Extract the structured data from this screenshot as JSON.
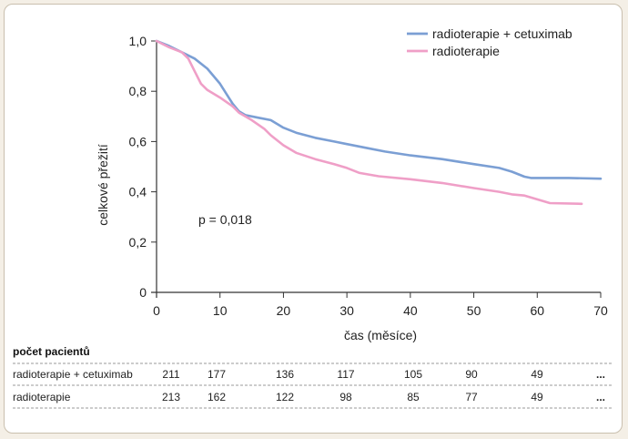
{
  "chart_data": {
    "type": "line",
    "xlabel": "čas (měsíce)",
    "ylabel": "celkové přežití",
    "xlim": [
      0,
      70
    ],
    "ylim": [
      0,
      1.0
    ],
    "xticks": [
      "0",
      "10",
      "20",
      "30",
      "40",
      "50",
      "60",
      "70"
    ],
    "yticks": [
      "0",
      "0,2",
      "0,4",
      "0,6",
      "0,8",
      "1,0"
    ],
    "grid": false,
    "legend_position": "top-right",
    "annotation": "p = 0,018",
    "series": [
      {
        "name": "radioterapie + cetuximab",
        "color": "#7b9fd4",
        "points": [
          [
            0,
            1.0
          ],
          [
            2,
            0.98
          ],
          [
            4,
            0.955
          ],
          [
            6,
            0.93
          ],
          [
            8,
            0.89
          ],
          [
            10,
            0.83
          ],
          [
            12,
            0.75
          ],
          [
            13,
            0.72
          ],
          [
            14,
            0.705
          ],
          [
            16,
            0.695
          ],
          [
            18,
            0.685
          ],
          [
            20,
            0.655
          ],
          [
            22,
            0.635
          ],
          [
            25,
            0.615
          ],
          [
            28,
            0.6
          ],
          [
            30,
            0.59
          ],
          [
            33,
            0.575
          ],
          [
            36,
            0.56
          ],
          [
            40,
            0.545
          ],
          [
            45,
            0.53
          ],
          [
            50,
            0.51
          ],
          [
            54,
            0.495
          ],
          [
            56,
            0.48
          ],
          [
            58,
            0.46
          ],
          [
            59,
            0.455
          ],
          [
            60,
            0.455
          ],
          [
            65,
            0.455
          ],
          [
            70,
            0.452
          ]
        ]
      },
      {
        "name": "radioterapie",
        "color": "#ef9fc7",
        "points": [
          [
            0,
            1.0
          ],
          [
            2,
            0.975
          ],
          [
            4,
            0.955
          ],
          [
            5,
            0.93
          ],
          [
            6,
            0.88
          ],
          [
            7,
            0.83
          ],
          [
            8,
            0.805
          ],
          [
            10,
            0.775
          ],
          [
            12,
            0.74
          ],
          [
            13,
            0.715
          ],
          [
            15,
            0.685
          ],
          [
            17,
            0.65
          ],
          [
            18,
            0.625
          ],
          [
            20,
            0.585
          ],
          [
            22,
            0.555
          ],
          [
            25,
            0.53
          ],
          [
            28,
            0.51
          ],
          [
            30,
            0.495
          ],
          [
            32,
            0.475
          ],
          [
            35,
            0.462
          ],
          [
            40,
            0.45
          ],
          [
            45,
            0.435
          ],
          [
            50,
            0.415
          ],
          [
            54,
            0.4
          ],
          [
            56,
            0.39
          ],
          [
            58,
            0.385
          ],
          [
            60,
            0.37
          ],
          [
            62,
            0.355
          ],
          [
            67,
            0.352
          ]
        ]
      }
    ],
    "at_risk_table": {
      "title": "počet pacientů",
      "rows": [
        {
          "label": "radioterapie + cetuximab",
          "values": [
            "211",
            "177",
            "136",
            "117",
            "105",
            "90",
            "49"
          ],
          "ellipsis": "..."
        },
        {
          "label": "radioterapie",
          "values": [
            "213",
            "162",
            "122",
            "98",
            "85",
            "77",
            "49"
          ],
          "ellipsis": "..."
        }
      ]
    }
  }
}
